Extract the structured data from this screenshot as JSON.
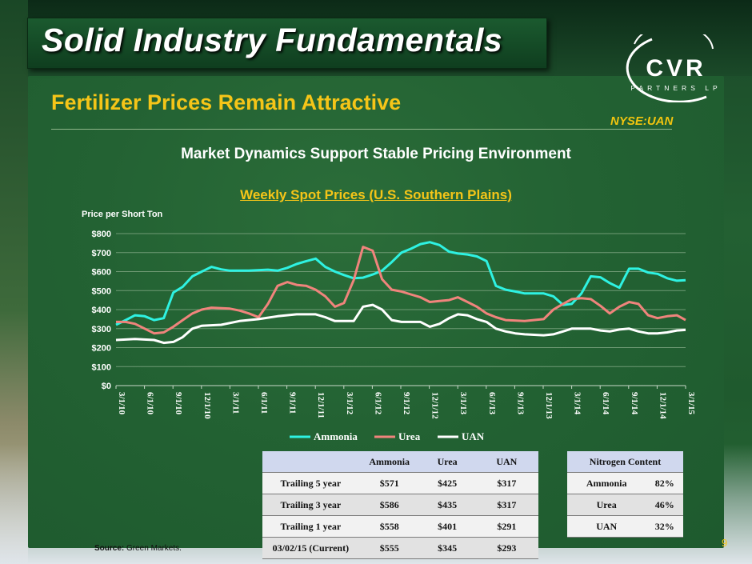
{
  "slide": {
    "title": "Solid Industry Fundamentals",
    "subtitle": "Fertilizer Prices Remain Attractive",
    "exchange": "NYSE:UAN",
    "headline": "Market Dynamics Support Stable Pricing Environment",
    "page_number": "9",
    "source_label": "Source:",
    "source_text": "Green Markets."
  },
  "logo": {
    "name": "CVR",
    "sub": "PARTNERS LP"
  },
  "chart_data": {
    "type": "line",
    "title": "Weekly Spot Prices (U.S. Southern Plains)",
    "ylabel": "Price per Short Ton",
    "xlabel": "",
    "ylim": [
      0,
      800
    ],
    "yticks": [
      "$0",
      "$100",
      "$200",
      "$300",
      "$400",
      "$500",
      "$600",
      "$700",
      "$800"
    ],
    "x_tick_labels": [
      "3/1/10",
      "6/1/10",
      "9/1/10",
      "12/1/10",
      "3/1/11",
      "6/1/11",
      "9/1/11",
      "12/1/11",
      "3/1/12",
      "6/1/12",
      "9/1/12",
      "12/1/12",
      "3/1/13",
      "6/1/13",
      "9/1/13",
      "12/1/13",
      "3/1/14",
      "6/1/14",
      "9/1/14",
      "12/1/14",
      "3/1/15"
    ],
    "x_range": [
      "2010-03-01",
      "2015-03-01"
    ],
    "legend_position": "bottom",
    "grid": "horizontal",
    "series": [
      {
        "name": "Ammonia",
        "color": "#2ef2e2",
        "points": [
          [
            "2010-03-01",
            320
          ],
          [
            "2010-04-01",
            345
          ],
          [
            "2010-05-01",
            370
          ],
          [
            "2010-06-01",
            365
          ],
          [
            "2010-07-01",
            345
          ],
          [
            "2010-08-01",
            355
          ],
          [
            "2010-09-01",
            490
          ],
          [
            "2010-10-01",
            520
          ],
          [
            "2010-11-01",
            575
          ],
          [
            "2010-12-01",
            600
          ],
          [
            "2011-01-01",
            625
          ],
          [
            "2011-02-01",
            612
          ],
          [
            "2011-03-01",
            605
          ],
          [
            "2011-05-01",
            605
          ],
          [
            "2011-07-01",
            610
          ],
          [
            "2011-08-01",
            605
          ],
          [
            "2011-09-01",
            620
          ],
          [
            "2011-10-01",
            640
          ],
          [
            "2011-11-01",
            655
          ],
          [
            "2011-12-01",
            668
          ],
          [
            "2012-01-01",
            625
          ],
          [
            "2012-02-01",
            600
          ],
          [
            "2012-03-01",
            582
          ],
          [
            "2012-04-01",
            565
          ],
          [
            "2012-05-01",
            568
          ],
          [
            "2012-06-01",
            585
          ],
          [
            "2012-07-01",
            605
          ],
          [
            "2012-08-01",
            650
          ],
          [
            "2012-09-01",
            700
          ],
          [
            "2012-10-01",
            720
          ],
          [
            "2012-11-01",
            745
          ],
          [
            "2012-12-01",
            755
          ],
          [
            "2013-01-01",
            740
          ],
          [
            "2013-02-01",
            705
          ],
          [
            "2013-03-01",
            695
          ],
          [
            "2013-04-01",
            690
          ],
          [
            "2013-05-01",
            680
          ],
          [
            "2013-06-01",
            655
          ],
          [
            "2013-07-01",
            525
          ],
          [
            "2013-08-01",
            505
          ],
          [
            "2013-09-01",
            495
          ],
          [
            "2013-10-01",
            485
          ],
          [
            "2013-12-01",
            485
          ],
          [
            "2014-01-01",
            470
          ],
          [
            "2014-02-01",
            425
          ],
          [
            "2014-03-01",
            430
          ],
          [
            "2014-04-01",
            485
          ],
          [
            "2014-05-01",
            575
          ],
          [
            "2014-06-01",
            570
          ],
          [
            "2014-07-01",
            540
          ],
          [
            "2014-08-01",
            515
          ],
          [
            "2014-09-01",
            615
          ],
          [
            "2014-10-01",
            615
          ],
          [
            "2014-11-01",
            595
          ],
          [
            "2014-12-01",
            588
          ],
          [
            "2015-01-01",
            565
          ],
          [
            "2015-02-01",
            552
          ],
          [
            "2015-03-01",
            555
          ]
        ]
      },
      {
        "name": "Urea",
        "color": "#f0847c",
        "points": [
          [
            "2010-03-01",
            335
          ],
          [
            "2010-04-01",
            335
          ],
          [
            "2010-05-01",
            325
          ],
          [
            "2010-06-01",
            300
          ],
          [
            "2010-07-01",
            275
          ],
          [
            "2010-08-01",
            280
          ],
          [
            "2010-09-01",
            310
          ],
          [
            "2010-10-01",
            345
          ],
          [
            "2010-11-01",
            380
          ],
          [
            "2010-12-01",
            400
          ],
          [
            "2011-01-01",
            410
          ],
          [
            "2011-03-01",
            405
          ],
          [
            "2011-04-01",
            395
          ],
          [
            "2011-05-01",
            380
          ],
          [
            "2011-06-01",
            360
          ],
          [
            "2011-07-01",
            430
          ],
          [
            "2011-08-01",
            525
          ],
          [
            "2011-09-01",
            545
          ],
          [
            "2011-10-01",
            530
          ],
          [
            "2011-11-01",
            525
          ],
          [
            "2011-12-01",
            505
          ],
          [
            "2012-01-01",
            470
          ],
          [
            "2012-02-01",
            415
          ],
          [
            "2012-03-01",
            435
          ],
          [
            "2012-04-01",
            555
          ],
          [
            "2012-05-01",
            730
          ],
          [
            "2012-06-01",
            710
          ],
          [
            "2012-07-01",
            560
          ],
          [
            "2012-08-01",
            505
          ],
          [
            "2012-09-01",
            495
          ],
          [
            "2012-10-01",
            480
          ],
          [
            "2012-11-01",
            465
          ],
          [
            "2012-12-01",
            440
          ],
          [
            "2013-01-01",
            445
          ],
          [
            "2013-02-01",
            450
          ],
          [
            "2013-03-01",
            465
          ],
          [
            "2013-04-01",
            440
          ],
          [
            "2013-05-01",
            415
          ],
          [
            "2013-06-01",
            380
          ],
          [
            "2013-07-01",
            360
          ],
          [
            "2013-08-01",
            345
          ],
          [
            "2013-10-01",
            340
          ],
          [
            "2013-12-01",
            350
          ],
          [
            "2014-01-01",
            400
          ],
          [
            "2014-02-01",
            430
          ],
          [
            "2014-03-01",
            455
          ],
          [
            "2014-04-01",
            460
          ],
          [
            "2014-05-01",
            455
          ],
          [
            "2014-06-01",
            420
          ],
          [
            "2014-07-01",
            380
          ],
          [
            "2014-08-01",
            415
          ],
          [
            "2014-09-01",
            440
          ],
          [
            "2014-10-01",
            430
          ],
          [
            "2014-11-01",
            370
          ],
          [
            "2014-12-01",
            355
          ],
          [
            "2015-01-01",
            365
          ],
          [
            "2015-02-01",
            370
          ],
          [
            "2015-03-01",
            345
          ]
        ]
      },
      {
        "name": "UAN",
        "color": "#ffffff",
        "points": [
          [
            "2010-03-01",
            240
          ],
          [
            "2010-05-01",
            245
          ],
          [
            "2010-07-01",
            240
          ],
          [
            "2010-08-01",
            225
          ],
          [
            "2010-09-01",
            230
          ],
          [
            "2010-10-01",
            255
          ],
          [
            "2010-11-01",
            300
          ],
          [
            "2010-12-01",
            315
          ],
          [
            "2011-02-01",
            320
          ],
          [
            "2011-04-01",
            340
          ],
          [
            "2011-06-01",
            350
          ],
          [
            "2011-08-01",
            365
          ],
          [
            "2011-10-01",
            375
          ],
          [
            "2011-12-01",
            375
          ],
          [
            "2012-01-01",
            360
          ],
          [
            "2012-02-01",
            340
          ],
          [
            "2012-04-01",
            340
          ],
          [
            "2012-05-01",
            415
          ],
          [
            "2012-06-01",
            425
          ],
          [
            "2012-07-01",
            400
          ],
          [
            "2012-08-01",
            345
          ],
          [
            "2012-09-01",
            335
          ],
          [
            "2012-11-01",
            335
          ],
          [
            "2012-12-01",
            310
          ],
          [
            "2013-01-01",
            325
          ],
          [
            "2013-02-01",
            355
          ],
          [
            "2013-03-01",
            375
          ],
          [
            "2013-04-01",
            370
          ],
          [
            "2013-05-01",
            350
          ],
          [
            "2013-06-01",
            335
          ],
          [
            "2013-07-01",
            300
          ],
          [
            "2013-08-01",
            285
          ],
          [
            "2013-09-01",
            275
          ],
          [
            "2013-10-01",
            270
          ],
          [
            "2013-12-01",
            265
          ],
          [
            "2014-01-01",
            270
          ],
          [
            "2014-02-01",
            285
          ],
          [
            "2014-03-01",
            300
          ],
          [
            "2014-05-01",
            300
          ],
          [
            "2014-06-01",
            290
          ],
          [
            "2014-07-01",
            285
          ],
          [
            "2014-08-01",
            295
          ],
          [
            "2014-09-01",
            300
          ],
          [
            "2014-10-01",
            285
          ],
          [
            "2014-11-01",
            275
          ],
          [
            "2014-12-01",
            275
          ],
          [
            "2015-01-01",
            280
          ],
          [
            "2015-02-01",
            290
          ],
          [
            "2015-03-01",
            293
          ]
        ]
      }
    ]
  },
  "price_table": {
    "headers": [
      "",
      "Ammonia",
      "Urea",
      "UAN"
    ],
    "rows": [
      [
        "Trailing 5 year",
        "$571",
        "$425",
        "$317"
      ],
      [
        "Trailing 3 year",
        "$586",
        "$435",
        "$317"
      ],
      [
        "Trailing 1 year",
        "$558",
        "$401",
        "$291"
      ],
      [
        "03/02/15 (Current)",
        "$555",
        "$345",
        "$293"
      ]
    ]
  },
  "nitrogen_table": {
    "header": "Nitrogen Content",
    "rows": [
      [
        "Ammonia",
        "82%"
      ],
      [
        "Urea",
        "46%"
      ],
      [
        "UAN",
        "32%"
      ]
    ]
  }
}
